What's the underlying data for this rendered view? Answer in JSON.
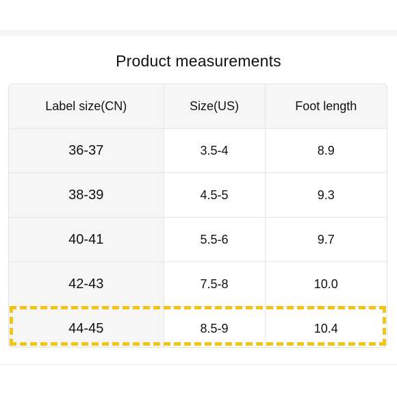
{
  "title": "Product measurements",
  "table": {
    "headers": [
      "Label size(CN)",
      "Size(US)",
      "Foot length"
    ],
    "rows": [
      [
        "36-37",
        "3.5-4",
        "8.9"
      ],
      [
        "38-39",
        "4.5-5",
        "9.3"
      ],
      [
        "40-41",
        "5.5-6",
        "9.7"
      ],
      [
        "42-43",
        "7.5-8",
        "10.0"
      ],
      [
        "44-45",
        "8.5-9",
        "10.4"
      ]
    ],
    "highlighted_row": 4
  },
  "colors": {
    "highlight": "#f2c416",
    "header_bg": "#f6f6f6",
    "border": "#e6e6e6"
  }
}
